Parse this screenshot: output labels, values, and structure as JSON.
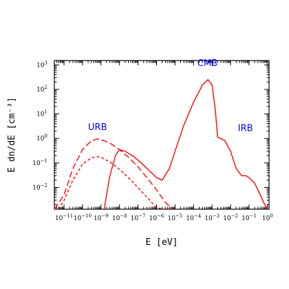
{
  "chart_data": {
    "type": "line",
    "xlabel": "E [eV]",
    "ylabel": "E dn/dE [cm⁻³]",
    "x_scale": "log",
    "y_scale": "log",
    "xlim": [
      3e-12,
      1.2
    ],
    "ylim": [
      0.0013,
      1500
    ],
    "grid": false,
    "x_ticks": [
      {
        "exp": -11,
        "base": "10",
        "sup": "−11"
      },
      {
        "exp": -10,
        "base": "10",
        "sup": "−10"
      },
      {
        "exp": -9,
        "base": "10",
        "sup": "−9"
      },
      {
        "exp": -8,
        "base": "10",
        "sup": "−8"
      },
      {
        "exp": -7,
        "base": "10",
        "sup": "−7"
      },
      {
        "exp": -6,
        "base": "10",
        "sup": "−6"
      },
      {
        "exp": -5,
        "base": "10",
        "sup": "−5"
      },
      {
        "exp": -4,
        "base": "10",
        "sup": "−4"
      },
      {
        "exp": -3,
        "base": "10",
        "sup": "−3"
      },
      {
        "exp": -2,
        "base": "10",
        "sup": "−2"
      },
      {
        "exp": -1,
        "base": "10",
        "sup": "−1"
      },
      {
        "exp": 0,
        "base": "10",
        "sup": "0"
      }
    ],
    "y_ticks": [
      {
        "exp": -2,
        "base": "10",
        "sup": "−2"
      },
      {
        "exp": -1,
        "base": "10",
        "sup": "−1"
      },
      {
        "exp": 0,
        "base": "10",
        "sup": "0"
      },
      {
        "exp": 1,
        "base": "10",
        "sup": "1"
      },
      {
        "exp": 2,
        "base": "10",
        "sup": "2"
      },
      {
        "exp": 3,
        "base": "10",
        "sup": "3"
      }
    ],
    "series": [
      {
        "style": "long-dash",
        "color": "#ff0000",
        "x": [
          3e-12,
          1e-11,
          3e-11,
          1e-10,
          3e-10,
          6e-10,
          1e-09,
          3e-09,
          1e-08,
          3e-08,
          1e-07,
          3e-07,
          1e-06,
          3e-06,
          7e-06
        ],
        "y": [
          0.0013,
          0.005,
          0.06,
          0.35,
          0.8,
          0.95,
          0.9,
          0.65,
          0.35,
          0.17,
          0.07,
          0.025,
          0.008,
          0.0025,
          0.0013
        ]
      },
      {
        "style": "short-dash",
        "color": "#ff0000",
        "x": [
          5e-12,
          1e-11,
          3e-11,
          1e-10,
          3e-10,
          6e-10,
          1e-09,
          3e-09,
          1e-08,
          3e-08,
          1e-07,
          3e-07,
          1e-06,
          2.5e-06
        ],
        "y": [
          0.0013,
          0.003,
          0.02,
          0.09,
          0.16,
          0.18,
          0.17,
          0.11,
          0.055,
          0.025,
          0.01,
          0.004,
          0.0015,
          0.0013
        ]
      },
      {
        "style": "solid",
        "color": "#ff0000",
        "x": [
          1.5e-09,
          2e-09,
          3e-09,
          6e-09,
          1e-08,
          2e-08,
          5e-08,
          1e-07,
          3e-07,
          1e-06,
          2e-06,
          5e-06,
          1e-05,
          3e-05,
          0.0001,
          0.0003,
          0.0006,
          0.001,
          0.0015,
          0.002,
          0.003,
          0.005,
          0.01,
          0.02,
          0.04,
          0.07,
          0.1,
          0.2,
          0.4,
          0.7,
          1.0
        ],
        "y": [
          0.0013,
          0.005,
          0.03,
          0.2,
          0.35,
          0.3,
          0.2,
          0.13,
          0.06,
          0.025,
          0.02,
          0.06,
          0.3,
          3.5,
          30,
          150,
          250,
          150,
          15,
          1.1,
          1.0,
          0.8,
          0.3,
          0.06,
          0.03,
          0.03,
          0.025,
          0.015,
          0.005,
          0.002,
          0.0013
        ]
      }
    ],
    "annotations": [
      {
        "text": "URB",
        "x": 2e-10,
        "y": 2.2,
        "color": "#0000ff"
      },
      {
        "text": "CMB",
        "x": 0.00016,
        "y": 900,
        "color": "#0000ff"
      },
      {
        "text": "IRB",
        "x": 0.025,
        "y": 2.0,
        "color": "#0000ff"
      }
    ]
  }
}
